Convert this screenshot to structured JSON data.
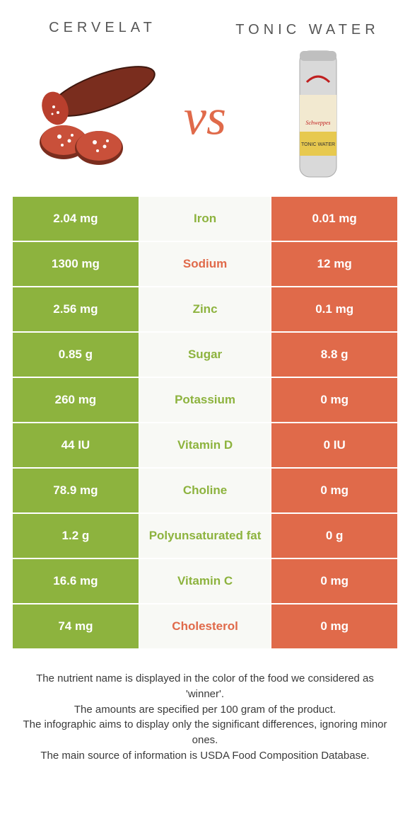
{
  "colors": {
    "left": "#8db33e",
    "right": "#e06a4a",
    "mid_bg": "#f8f9f5",
    "mid_text_left": "#8db33e",
    "mid_text_right": "#e06a4a",
    "title": "#555555"
  },
  "header": {
    "left_title": "Cervelat",
    "right_title": "Tonic water",
    "vs": "vs"
  },
  "rows": [
    {
      "left": "2.04 mg",
      "label": "Iron",
      "right": "0.01 mg",
      "winner": "left"
    },
    {
      "left": "1300 mg",
      "label": "Sodium",
      "right": "12 mg",
      "winner": "right"
    },
    {
      "left": "2.56 mg",
      "label": "Zinc",
      "right": "0.1 mg",
      "winner": "left"
    },
    {
      "left": "0.85 g",
      "label": "Sugar",
      "right": "8.8 g",
      "winner": "left"
    },
    {
      "left": "260 mg",
      "label": "Potassium",
      "right": "0 mg",
      "winner": "left"
    },
    {
      "left": "44 IU",
      "label": "Vitamin D",
      "right": "0 IU",
      "winner": "left"
    },
    {
      "left": "78.9 mg",
      "label": "Choline",
      "right": "0 mg",
      "winner": "left"
    },
    {
      "left": "1.2 g",
      "label": "Polyunsaturated fat",
      "right": "0 g",
      "winner": "left"
    },
    {
      "left": "16.6 mg",
      "label": "Vitamin C",
      "right": "0 mg",
      "winner": "left"
    },
    {
      "left": "74 mg",
      "label": "Cholesterol",
      "right": "0 mg",
      "winner": "right"
    }
  ],
  "footer": {
    "line1": "The nutrient name is displayed in the color of the food we considered as 'winner'.",
    "line2": "The amounts are specified per 100 gram of the product.",
    "line3": "The infographic aims to display only the significant differences, ignoring minor ones.",
    "line4": "The main source of information is USDA Food Composition Database."
  }
}
